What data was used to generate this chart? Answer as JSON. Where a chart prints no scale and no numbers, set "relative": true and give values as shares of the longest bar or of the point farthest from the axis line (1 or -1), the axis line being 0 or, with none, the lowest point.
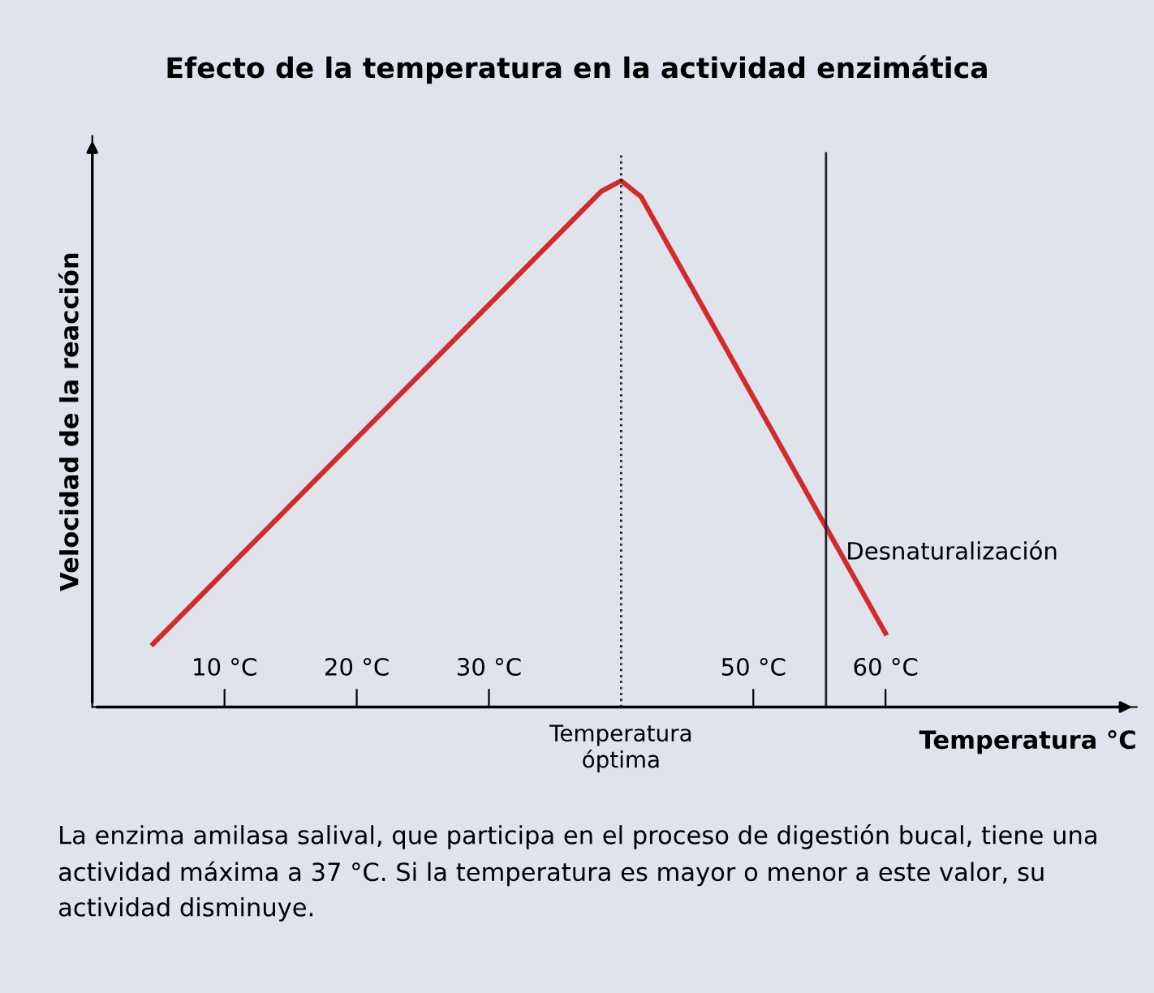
{
  "chart_data": {
    "type": "line",
    "title": "Efecto de la temperatura en la actividad enzimática",
    "xlabel": "Temperatura °C",
    "ylabel": "Velocidad de la reacción",
    "relative": true,
    "x": [
      4.6,
      38.5,
      40,
      41.5,
      60
    ],
    "series": [
      {
        "color": "#d42a2a",
        "values": [
          0.12,
          0.98,
          1.0,
          0.97,
          0.14
        ]
      }
    ],
    "xlim": [
      0,
      79
    ],
    "xticks": [
      {
        "value": 10,
        "label": "10 °C"
      },
      {
        "value": 20,
        "label": "20 °C"
      },
      {
        "value": 30,
        "label": "30 °C"
      },
      {
        "value": 50,
        "label": "50 °C"
      },
      {
        "value": 60,
        "label": "60 °C"
      }
    ],
    "ref_lines": [
      {
        "axis": "x",
        "value": 40,
        "label": "Temperatura\nóptima",
        "line_style": "dotted",
        "color": "#222222"
      },
      {
        "axis": "x",
        "value": 55.5,
        "label": "Desnaturalización",
        "line_style": "solid",
        "color": "#222222"
      }
    ],
    "grid": false,
    "legend": false,
    "marker": "none",
    "line_style": "solid",
    "annotations": [
      "La enzima amilasa salival, que participa en el proceso de digestión bucal, tiene una actividad máxima a 37 °C. Si la temperatura es mayor o menor a este valor, su actividad disminuye."
    ]
  }
}
